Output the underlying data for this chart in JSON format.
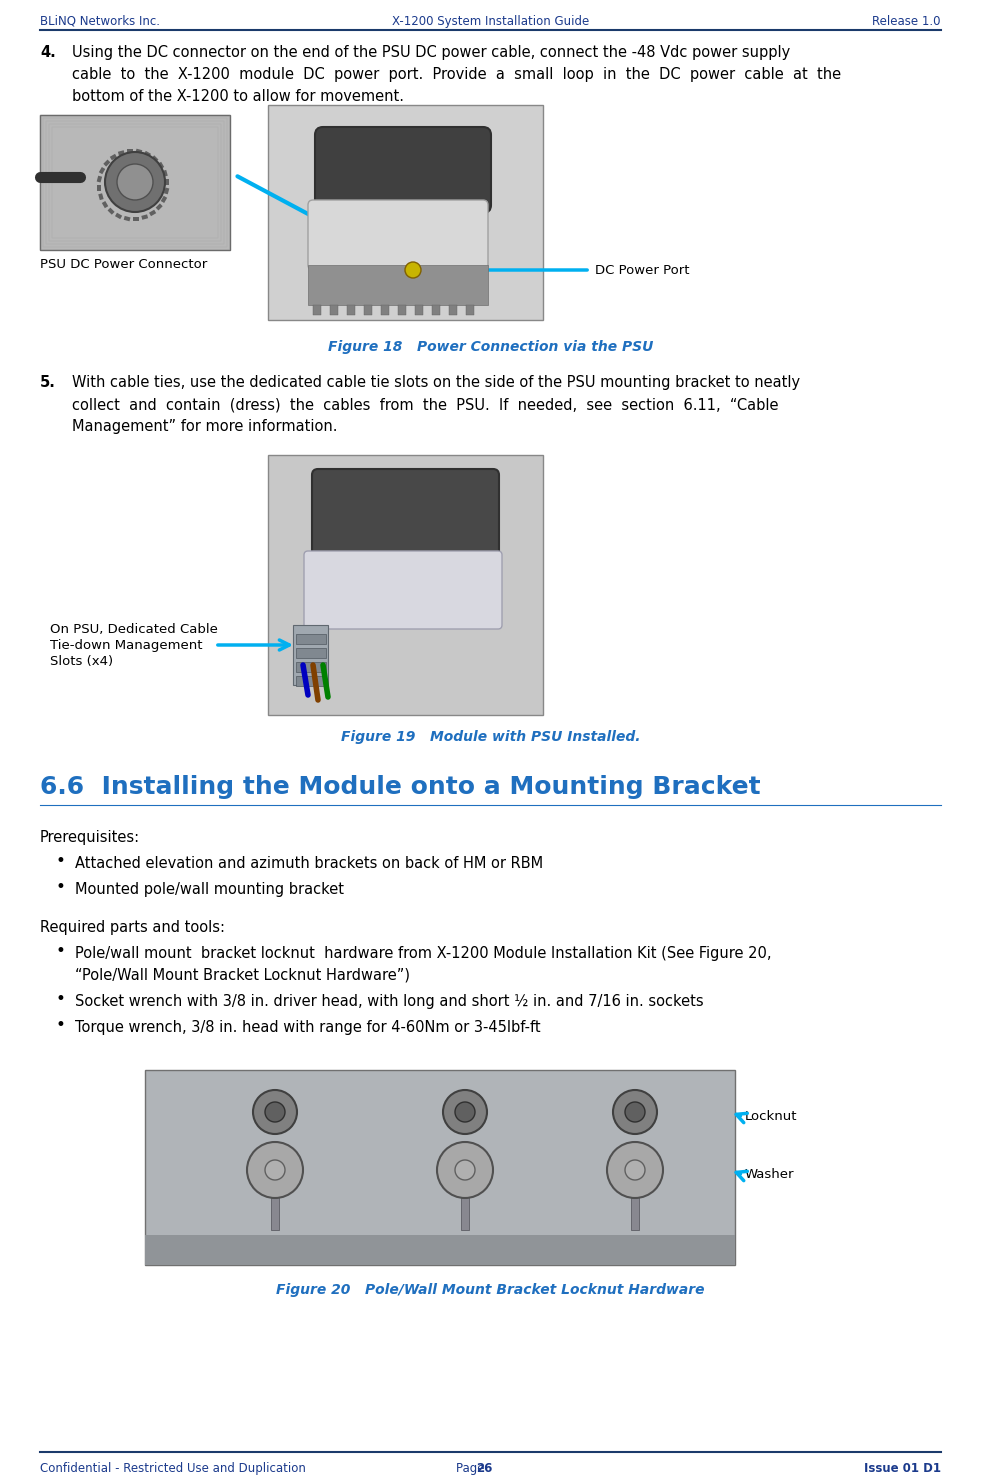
{
  "header_left": "BLiNQ Networks Inc.",
  "header_center": "X-1200 System Installation Guide",
  "header_right": "Release 1.0",
  "footer_left": "Confidential - Restricted Use and Duplication",
  "footer_center": "Page ",
  "footer_page": "26",
  "footer_right": "Issue 01 D1",
  "header_line_color": "#1B3A6B",
  "footer_line_color": "#1B3A6B",
  "text_color_blue": "#1B3A8C",
  "text_color_black": "#000000",
  "header_fontsize": 8.5,
  "footer_fontsize": 8.5,
  "body_fontsize": 10.5,
  "section_heading": "6.6  Installing the Module onto a Mounting Bracket",
  "section_heading_color": "#1F6FBF",
  "section_heading_fontsize": 18,
  "item4_text_line1": "Using the DC connector on the end of the PSU DC power cable, connect the -48 Vdc power supply",
  "item4_text_line2": "cable  to  the  X-1200  module  DC  power  port.  Provide  a  small  loop  in  the  DC  power  cable  at  the",
  "item4_text_line3": "bottom of the X-1200 to allow for movement.",
  "fig18_caption": "Figure 18   Power Connection via the PSU",
  "label_psu_dc": "PSU DC Power Connector",
  "label_dc_port": "DC Power Port",
  "item5_text_line1": "With cable ties, use the dedicated cable tie slots on the side of the PSU mounting bracket to neatly",
  "item5_text_line2": "collect  and  contain  (dress)  the  cables  from  the  PSU.  If  needed,  see  section  6.11,  “Cable",
  "item5_text_line3": "Management” for more information.",
  "fig19_caption": "Figure 19   Module with PSU Installed.",
  "label_cable_slots_line1": "On PSU, Dedicated Cable",
  "label_cable_slots_line2": "Tie-down Management",
  "label_cable_slots_line3": "Slots (x4)",
  "prereq_title": "Prerequisites:",
  "prereq_items": [
    "Attached elevation and azimuth brackets on back of HM or RBM",
    "Mounted pole/wall mounting bracket"
  ],
  "req_title": "Required parts and tools:",
  "req_item1_line1": "Pole/wall mount  bracket locknut  hardware from X-1200 Module Installation Kit (See Figure 20,",
  "req_item1_line2": "“Pole/Wall Mount Bracket Locknut Hardware”)",
  "req_item2": "Socket wrench with 3/8 in. driver head, with long and short ½ in. and 7/16 in. sockets",
  "req_item3": "Torque wrench, 3/8 in. head with range for 4-60Nm or 3-45lbf-ft",
  "fig20_caption": "Figure 20   Pole/Wall Mount Bracket Locknut Hardware",
  "label_locknut": "Locknut",
  "label_washer": "Washer",
  "arrow_color": "#00B0F0",
  "fig_caption_color": "#1F6FBF",
  "fig_caption_fontsize": 10,
  "bullet_char": "•"
}
